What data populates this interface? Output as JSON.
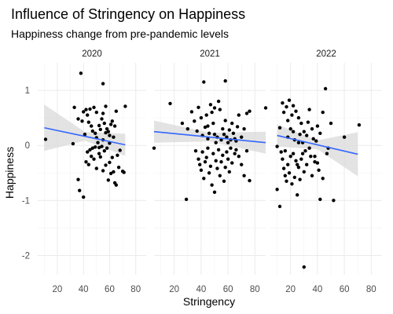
{
  "chart_data": {
    "type": "scatter",
    "title": "Influence of Stringency on Happiness",
    "subtitle": "Happiness change from pre-pandemic levels",
    "xlabel": "Stringency",
    "ylabel": "Happiness",
    "x_ticks": [
      20,
      40,
      60,
      80
    ],
    "y_ticks": [
      -2,
      -1,
      0,
      1
    ],
    "xlim": [
      5,
      88
    ],
    "ylim": [
      -2.35,
      1.5
    ],
    "grid": true,
    "legend": "none",
    "point_color": "#000000",
    "trend_color": "#3366ff",
    "band_color": "#d9d9d9",
    "facets": [
      {
        "label": "2020",
        "trend": {
          "x": [
            10,
            72
          ],
          "y": [
            0.32,
            0.01
          ],
          "ci_at_ends": [
            0.42,
            0.2
          ]
        },
        "points": [
          [
            11,
            0.11
          ],
          [
            38,
            1.31
          ],
          [
            55,
            1.12
          ],
          [
            32,
            0.03
          ],
          [
            33,
            0.69
          ],
          [
            36,
            0.48
          ],
          [
            39,
            0.44
          ],
          [
            40,
            0.61
          ],
          [
            41,
            0.2
          ],
          [
            42,
            0.65
          ],
          [
            43,
            0.55
          ],
          [
            44,
            0.42
          ],
          [
            45,
            0.66
          ],
          [
            46,
            0.35
          ],
          [
            47,
            0.26
          ],
          [
            48,
            0.69
          ],
          [
            49,
            0.22
          ],
          [
            50,
            0.14
          ],
          [
            51,
            0.05
          ],
          [
            52,
            -0.04
          ],
          [
            53,
            0.29
          ],
          [
            54,
            0.48
          ],
          [
            55,
            0.58
          ],
          [
            56,
            0.4
          ],
          [
            57,
            0.71
          ],
          [
            58,
            0.3
          ],
          [
            59,
            0.25
          ],
          [
            60,
            0.18
          ],
          [
            61,
            0.38
          ],
          [
            62,
            0.44
          ],
          [
            63,
            0.15
          ],
          [
            64,
            0.35
          ],
          [
            65,
            0.62
          ],
          [
            36,
            -0.62
          ],
          [
            37,
            -0.82
          ],
          [
            40,
            -0.94
          ],
          [
            42,
            -0.3
          ],
          [
            43,
            -0.12
          ],
          [
            44,
            -0.35
          ],
          [
            45,
            -0.08
          ],
          [
            46,
            -0.2
          ],
          [
            47,
            -0.05
          ],
          [
            48,
            -0.25
          ],
          [
            49,
            -0.03
          ],
          [
            50,
            -0.42
          ],
          [
            52,
            -0.15
          ],
          [
            53,
            -0.21
          ],
          [
            54,
            -0.02
          ],
          [
            55,
            -0.46
          ],
          [
            56,
            -0.1
          ],
          [
            57,
            -0.36
          ],
          [
            58,
            -0.05
          ],
          [
            59,
            -0.63
          ],
          [
            60,
            -0.31
          ],
          [
            61,
            -0.51
          ],
          [
            62,
            -0.22
          ],
          [
            63,
            -0.48
          ],
          [
            64,
            -0.68
          ],
          [
            65,
            -0.72
          ],
          [
            66,
            -0.18
          ],
          [
            67,
            -0.4
          ],
          [
            68,
            -0.09
          ],
          [
            70,
            -0.47
          ],
          [
            71,
            -0.49
          ],
          [
            72,
            0.71
          ],
          [
            50,
            0.6
          ],
          [
            52,
            0.36
          ],
          [
            55,
            0.1
          ],
          [
            60,
            0.04
          ],
          [
            57,
            0.23
          ]
        ]
      },
      {
        "label": "2021",
        "trend": {
          "x": [
            5,
            88
          ],
          "y": [
            0.25,
            0.05
          ],
          "ci_at_ends": [
            0.2,
            0.2
          ]
        },
        "points": [
          [
            5,
            -0.05
          ],
          [
            17,
            0.76
          ],
          [
            29,
            -0.98
          ],
          [
            42,
            1.15
          ],
          [
            58,
            1.17
          ],
          [
            88,
            0.68
          ],
          [
            26,
            0.4
          ],
          [
            30,
            0.3
          ],
          [
            33,
            0.61
          ],
          [
            35,
            0.44
          ],
          [
            37,
            0.26
          ],
          [
            38,
            0.69
          ],
          [
            40,
            0.5
          ],
          [
            41,
            0.18
          ],
          [
            43,
            0.33
          ],
          [
            44,
            0.55
          ],
          [
            45,
            0.12
          ],
          [
            46,
            0.22
          ],
          [
            47,
            0.74
          ],
          [
            48,
            0.6
          ],
          [
            49,
            0.4
          ],
          [
            50,
            0.2
          ],
          [
            51,
            0.05
          ],
          [
            52,
            0.15
          ],
          [
            53,
            0.8
          ],
          [
            54,
            0.65
          ],
          [
            55,
            0.1
          ],
          [
            56,
            0.3
          ],
          [
            57,
            0.2
          ],
          [
            58,
            0.45
          ],
          [
            59,
            0.15
          ],
          [
            60,
            0.05
          ],
          [
            61,
            0.28
          ],
          [
            62,
            0.1
          ],
          [
            63,
            0.4
          ],
          [
            64,
            0.22
          ],
          [
            65,
            0.12
          ],
          [
            66,
            0.08
          ],
          [
            67,
            0.34
          ],
          [
            68,
            0.55
          ],
          [
            70,
            0.15
          ],
          [
            72,
            0.3
          ],
          [
            74,
            0.58
          ],
          [
            76,
            0.62
          ],
          [
            36,
            -0.1
          ],
          [
            38,
            -0.25
          ],
          [
            39,
            -0.35
          ],
          [
            40,
            -0.45
          ],
          [
            41,
            -0.12
          ],
          [
            42,
            -0.6
          ],
          [
            43,
            -0.3
          ],
          [
            44,
            -0.22
          ],
          [
            45,
            -0.05
          ],
          [
            46,
            -0.5
          ],
          [
            47,
            -0.38
          ],
          [
            48,
            -0.72
          ],
          [
            49,
            -0.15
          ],
          [
            50,
            -0.85
          ],
          [
            51,
            -0.28
          ],
          [
            52,
            -0.42
          ],
          [
            53,
            -0.08
          ],
          [
            54,
            -0.55
          ],
          [
            55,
            -0.3
          ],
          [
            56,
            -0.18
          ],
          [
            57,
            -0.65
          ],
          [
            58,
            -0.4
          ],
          [
            59,
            -0.12
          ],
          [
            60,
            -0.25
          ],
          [
            61,
            -0.48
          ],
          [
            62,
            -0.05
          ],
          [
            63,
            -0.32
          ],
          [
            65,
            -0.15
          ],
          [
            66,
            -0.08
          ],
          [
            68,
            -0.2
          ],
          [
            70,
            -0.35
          ],
          [
            72,
            -0.55
          ],
          [
            74,
            -0.1
          ],
          [
            76,
            -0.64
          ],
          [
            45,
            0.35
          ],
          [
            50,
            0.68
          ]
        ]
      },
      {
        "label": "2022",
        "trend": {
          "x": [
            10,
            70
          ],
          "y": [
            0.18,
            -0.16
          ],
          "ci_at_ends": [
            0.2,
            0.4
          ]
        },
        "points": [
          [
            10,
            -0.02
          ],
          [
            12,
            -1.11
          ],
          [
            14,
            0.77
          ],
          [
            15,
            0.6
          ],
          [
            16,
            -0.55
          ],
          [
            17,
            0.7
          ],
          [
            18,
            0.45
          ],
          [
            19,
            0.82
          ],
          [
            20,
            0.3
          ],
          [
            21,
            0.55
          ],
          [
            22,
            0.72
          ],
          [
            23,
            0.1
          ],
          [
            24,
            0.62
          ],
          [
            25,
            -0.35
          ],
          [
            26,
            0.5
          ],
          [
            27,
            0.2
          ],
          [
            28,
            0.4
          ],
          [
            29,
            0.05
          ],
          [
            30,
            0.25
          ],
          [
            31,
            -0.1
          ],
          [
            32,
            0.18
          ],
          [
            33,
            0.42
          ],
          [
            34,
            0.65
          ],
          [
            35,
            -0.2
          ],
          [
            36,
            0.3
          ],
          [
            37,
            0.12
          ],
          [
            38,
            -0.3
          ],
          [
            39,
            0.08
          ],
          [
            40,
            0.35
          ],
          [
            41,
            -0.45
          ],
          [
            42,
            0.22
          ],
          [
            44,
            0.6
          ],
          [
            46,
            1.03
          ],
          [
            48,
            -0.05
          ],
          [
            50,
            0.4
          ],
          [
            10,
            -0.8
          ],
          [
            12,
            0.32
          ],
          [
            13,
            -0.12
          ],
          [
            14,
            -0.25
          ],
          [
            15,
            -0.42
          ],
          [
            16,
            -0.1
          ],
          [
            17,
            -0.65
          ],
          [
            18,
            -0.35
          ],
          [
            19,
            -0.5
          ],
          [
            20,
            -0.2
          ],
          [
            21,
            -0.7
          ],
          [
            22,
            -0.15
          ],
          [
            23,
            -0.58
          ],
          [
            24,
            -0.28
          ],
          [
            25,
            -0.9
          ],
          [
            26,
            -0.4
          ],
          [
            27,
            -0.62
          ],
          [
            28,
            -0.25
          ],
          [
            29,
            -0.15
          ],
          [
            30,
            -0.48
          ],
          [
            32,
            -0.35
          ],
          [
            34,
            -0.05
          ],
          [
            36,
            -0.55
          ],
          [
            38,
            -0.2
          ],
          [
            40,
            -0.32
          ],
          [
            42,
            -0.98
          ],
          [
            44,
            -0.6
          ],
          [
            47,
            -0.15
          ],
          [
            52,
            -1.0
          ],
          [
            30,
            -2.21
          ],
          [
            71,
            0.37
          ],
          [
            60,
            0.15
          ],
          [
            18,
            0.15
          ],
          [
            22,
            0.25
          ],
          [
            26,
            0.05
          ]
        ]
      }
    ]
  }
}
